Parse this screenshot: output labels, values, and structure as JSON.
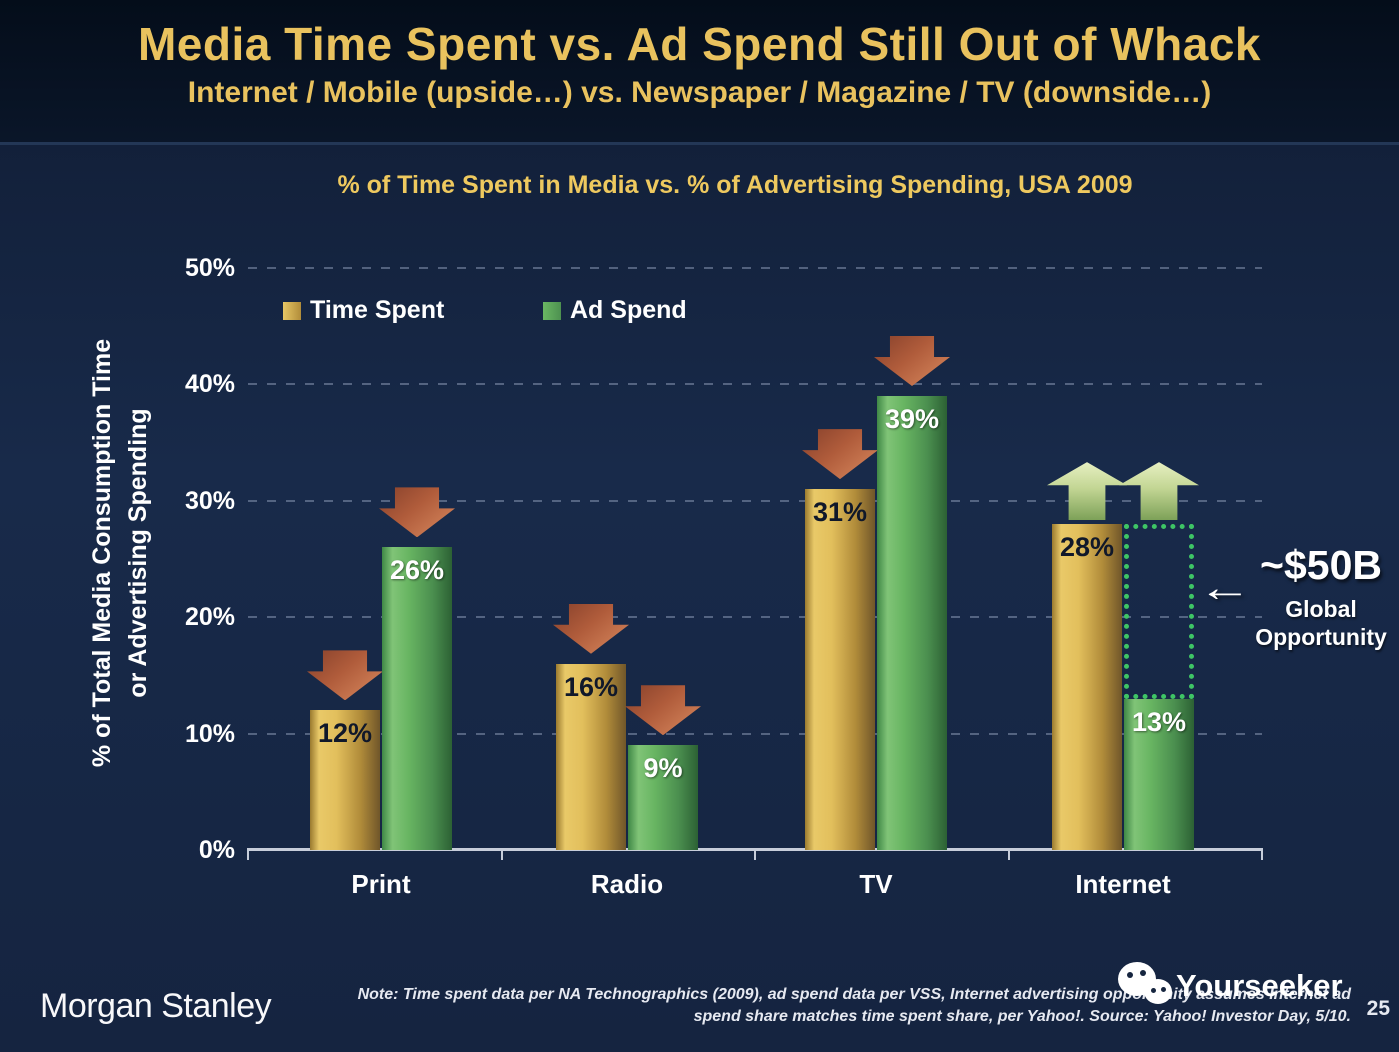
{
  "slide": {
    "title": "Media Time Spent vs. Ad Spend Still Out of Whack",
    "subtitle": "Internet / Mobile (upside…) vs. Newspaper / Magazine / TV (downside…)"
  },
  "chart_data": {
    "type": "bar",
    "title": "% of Time Spent in Media vs. % of Advertising Spending, USA 2009",
    "categories": [
      "Print",
      "Radio",
      "TV",
      "Internet"
    ],
    "series": [
      {
        "name": "Time Spent",
        "color_key": "gold",
        "values": [
          12,
          16,
          31,
          28
        ]
      },
      {
        "name": "Ad Spend",
        "color_key": "green",
        "values": [
          26,
          9,
          39,
          13
        ]
      }
    ],
    "value_suffix": "%",
    "ylabel_line1": "% of Total Media Consumption Time",
    "ylabel_line2": "or Advertising Spending",
    "ylim": [
      0,
      50
    ],
    "yticks": [
      "0%",
      "10%",
      "20%",
      "30%",
      "40%",
      "50%"
    ],
    "ytick_values": [
      0,
      10,
      20,
      30,
      40,
      50
    ],
    "grid": "dashed horizontal",
    "legend_position": "top-left",
    "arrows": [
      [
        "down",
        "down"
      ],
      [
        "down",
        "down"
      ],
      [
        "down",
        "down"
      ],
      [
        "up",
        "up"
      ]
    ],
    "opportunity_gap": {
      "category": "Internet",
      "series": "Ad Spend",
      "from": 13,
      "to": 28
    }
  },
  "annotation": {
    "value": "~$50B",
    "line1": "Global",
    "line2": "Opportunity",
    "arrow_icon": "←"
  },
  "footer": {
    "logo": "Morgan Stanley",
    "note_line1": "Note: Time spent data per NA Technographics (2009), ad spend data per VSS, Internet advertising opportunity assumes Internet ad",
    "note_line2": "spend share matches time spent share, per Yahoo!. Source: Yahoo! Investor Day, 5/10.",
    "page_number": "25"
  },
  "watermark": {
    "name": "Yourseeker",
    "icon": "wechat-icon"
  },
  "colors": {
    "background": "#15243F",
    "header_background": "#071221",
    "title_gold": "#E8C25E",
    "bar_gold": "#D9A93F",
    "bar_green": "#55A455",
    "arrow_red": "#B05C3B",
    "arrow_up_green": "#AFC87E",
    "gap_dotted_green": "#3EC565",
    "text_white": "#FFFFFF"
  }
}
